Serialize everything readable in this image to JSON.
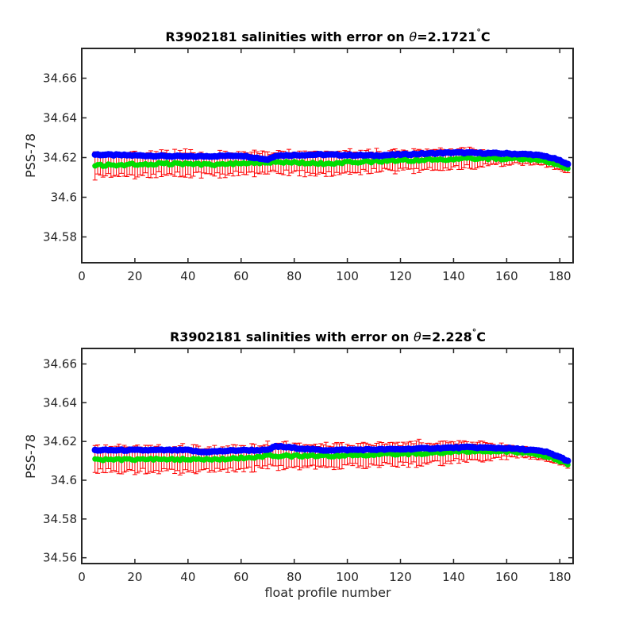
{
  "colors": {
    "error_bar": "#ff0000",
    "mapped_salinity": "#00dd00",
    "float_salinity": "#0000ff",
    "axes": "#262626"
  },
  "chart_data": [
    {
      "type": "scatter",
      "title_text": "R3902181 salinities with error on ",
      "title_theta": "θ",
      "title_value": "=2.1721",
      "title_degree": "°",
      "title_unit": "C",
      "xlabel": "",
      "ylabel": "PSS-78",
      "xlim": [
        0,
        185
      ],
      "ylim": [
        34.567,
        34.675
      ],
      "xticks": [
        0,
        20,
        40,
        60,
        80,
        100,
        120,
        140,
        160,
        180
      ],
      "xtick_labels": [
        "0",
        "20",
        "40",
        "60",
        "80",
        "100",
        "120",
        "140",
        "160",
        "180"
      ],
      "yticks": [
        34.58,
        34.6,
        34.62,
        34.64,
        34.66
      ],
      "ytick_labels": [
        "34.58",
        "34.6",
        "34.62",
        "34.64",
        "34.66"
      ],
      "x_range": [
        5,
        183
      ],
      "series": [
        {
          "role": "float_salinity",
          "anchors": [
            [
              5,
              34.6215
            ],
            [
              40,
              34.6205
            ],
            [
              60,
              34.621
            ],
            [
              70,
              34.619
            ],
            [
              73,
              34.621
            ],
            [
              90,
              34.6215
            ],
            [
              110,
              34.621
            ],
            [
              140,
              34.6225
            ],
            [
              160,
              34.622
            ],
            [
              170,
              34.6215
            ],
            [
              175,
              34.6205
            ],
            [
              179,
              34.619
            ],
            [
              183,
              34.6165
            ]
          ]
        },
        {
          "role": "mapped_salinity",
          "anchors": [
            [
              5,
              34.616
            ],
            [
              30,
              34.617
            ],
            [
              50,
              34.6165
            ],
            [
              65,
              34.6175
            ],
            [
              73,
              34.6175
            ],
            [
              90,
              34.617
            ],
            [
              120,
              34.6185
            ],
            [
              150,
              34.6195
            ],
            [
              165,
              34.6195
            ],
            [
              175,
              34.618
            ],
            [
              180,
              34.616
            ],
            [
              183,
              34.6145
            ]
          ]
        },
        {
          "role": "mapped_error",
          "anchors": [
            [
              5,
              34.0058
            ],
            [
              70,
              34.0056
            ],
            [
              90,
              34.0052
            ],
            [
              135,
              34.005
            ],
            [
              150,
              34.004
            ],
            [
              165,
              34.0025
            ],
            [
              183,
              34.002
            ]
          ]
        }
      ]
    },
    {
      "type": "scatter",
      "title_text": "R3902181 salinities with error on ",
      "title_theta": "θ",
      "title_value": "=2.228",
      "title_degree": "°",
      "title_unit": "C",
      "xlabel": "float profile number",
      "ylabel": "PSS-78",
      "xlim": [
        0,
        185
      ],
      "ylim": [
        34.557,
        34.668
      ],
      "xticks": [
        0,
        20,
        40,
        60,
        80,
        100,
        120,
        140,
        160,
        180
      ],
      "xtick_labels": [
        "0",
        "20",
        "40",
        "60",
        "80",
        "100",
        "120",
        "140",
        "160",
        "180"
      ],
      "yticks": [
        34.56,
        34.58,
        34.6,
        34.62,
        34.64,
        34.66
      ],
      "ytick_labels": [
        "34.56",
        "34.58",
        "34.6",
        "34.62",
        "34.64",
        "34.66"
      ],
      "x_range": [
        5,
        183
      ],
      "series": [
        {
          "role": "float_salinity",
          "anchors": [
            [
              5,
              34.6155
            ],
            [
              40,
              34.6155
            ],
            [
              45,
              34.6145
            ],
            [
              60,
              34.6155
            ],
            [
              70,
              34.6155
            ],
            [
              73,
              34.6175
            ],
            [
              90,
              34.6155
            ],
            [
              120,
              34.616
            ],
            [
              145,
              34.617
            ],
            [
              160,
              34.6165
            ],
            [
              170,
              34.6155
            ],
            [
              175,
              34.6145
            ],
            [
              179,
              34.6125
            ],
            [
              183,
              34.61
            ]
          ]
        },
        {
          "role": "mapped_salinity",
          "anchors": [
            [
              5,
              34.6105
            ],
            [
              30,
              34.611
            ],
            [
              50,
              34.6105
            ],
            [
              70,
              34.6125
            ],
            [
              90,
              34.6125
            ],
            [
              120,
              34.6135
            ],
            [
              150,
              34.615
            ],
            [
              165,
              34.6145
            ],
            [
              175,
              34.6125
            ],
            [
              183,
              34.6085
            ]
          ]
        },
        {
          "role": "mapped_error",
          "anchors": [
            [
              5,
              34.0063
            ],
            [
              70,
              34.006
            ],
            [
              90,
              34.0055
            ],
            [
              130,
              34.0055
            ],
            [
              150,
              34.0045
            ],
            [
              165,
              34.0025
            ],
            [
              183,
              34.002
            ]
          ]
        }
      ]
    }
  ]
}
